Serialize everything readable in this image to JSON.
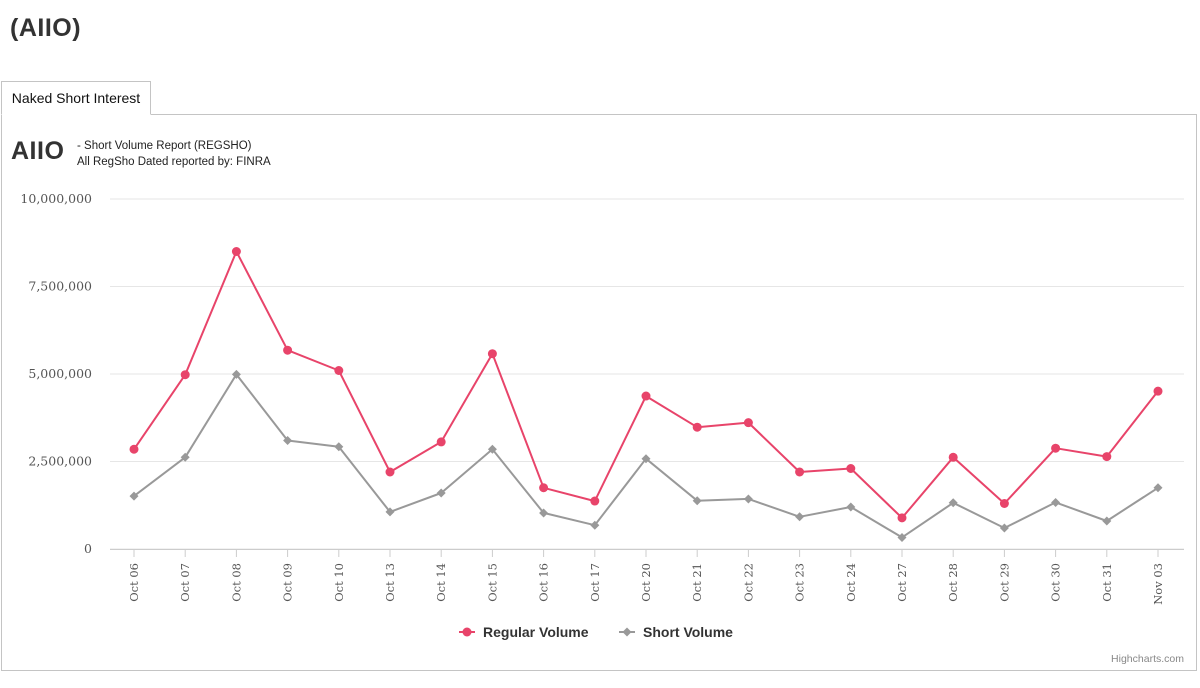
{
  "page_title": "(AIIO)",
  "tab": {
    "label": "Naked Short Interest"
  },
  "chart_header": {
    "ticker": "AIIO",
    "subtitle_line1": "- Short Volume Report  (REGSHO)",
    "subtitle_line2": "All RegSho Dated reported by: FINRA"
  },
  "credits": "Highcharts.com",
  "colors": {
    "regular": "#e8446a",
    "short": "#999999",
    "grid": "#e6e6e6"
  },
  "chart_data": {
    "type": "line",
    "title": "AIIO",
    "subtitle": "- Short Volume Report  (REGSHO)",
    "xlabel": "",
    "ylabel": "",
    "ylim": [
      0,
      10000000
    ],
    "yticks": [
      {
        "value": 0,
        "label": "0"
      },
      {
        "value": 2500000,
        "label": "2,500,000"
      },
      {
        "value": 5000000,
        "label": "5,000,000"
      },
      {
        "value": 7500000,
        "label": "7,500,000"
      },
      {
        "value": 10000000,
        "label": "10,000,000"
      }
    ],
    "grid": true,
    "legend_position": "bottom-center",
    "categories": [
      "Oct 06",
      "Oct 07",
      "Oct 08",
      "Oct 09",
      "Oct 10",
      "Oct 13",
      "Oct 14",
      "Oct 15",
      "Oct 16",
      "Oct 17",
      "Oct 20",
      "Oct 21",
      "Oct 22",
      "Oct 23",
      "Oct 24",
      "Oct 27",
      "Oct 28",
      "Oct 29",
      "Oct 30",
      "Oct 31",
      "Nov 03"
    ],
    "series": [
      {
        "name": "Regular Volume",
        "marker": "circle",
        "values": [
          2850000,
          4980000,
          8500000,
          5680000,
          5100000,
          2200000,
          3060000,
          5580000,
          1750000,
          1370000,
          4370000,
          3480000,
          3610000,
          2200000,
          2300000,
          890000,
          2620000,
          1300000,
          2880000,
          2640000,
          4510000
        ]
      },
      {
        "name": "Short Volume",
        "marker": "diamond",
        "values": [
          1510000,
          2620000,
          4990000,
          3100000,
          2920000,
          1060000,
          1600000,
          2850000,
          1030000,
          680000,
          2580000,
          1380000,
          1430000,
          920000,
          1200000,
          330000,
          1320000,
          600000,
          1330000,
          800000,
          1750000
        ]
      }
    ]
  }
}
